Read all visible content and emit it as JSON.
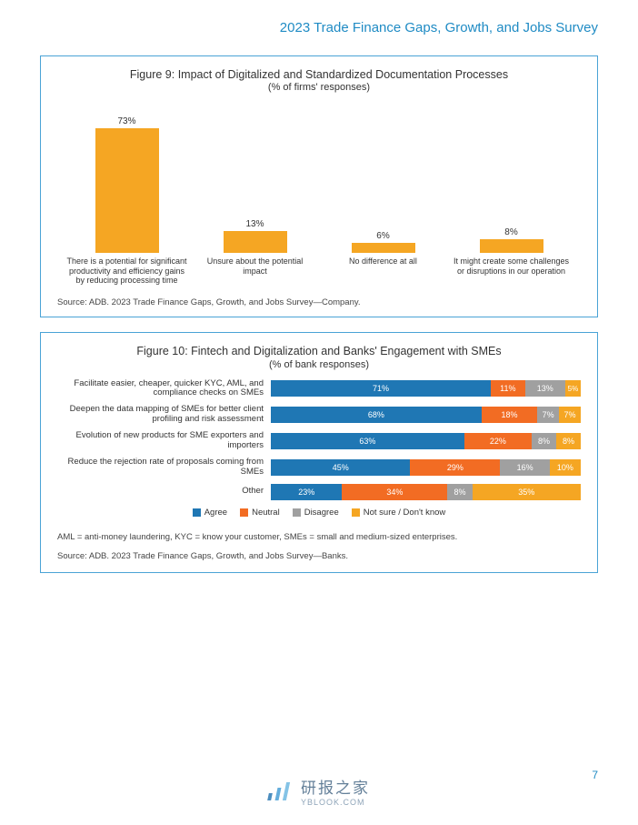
{
  "header": {
    "title": "2023 Trade Finance Gaps, Growth, and Jobs Survey",
    "color": "#1f8bc4"
  },
  "page_number": "7",
  "page_number_color": "#1f8bc4",
  "fig9": {
    "border_color": "#4aa3d6",
    "title": "Figure 9: Impact of Digitalized and Standardized Documentation Processes",
    "subtitle": "(% of firms' responses)",
    "title_color": "#333333",
    "bar_color": "#f5a623",
    "ymax": 80,
    "bars": [
      {
        "value": 73,
        "label_pct": "73%",
        "label": "There is a potential for significant productivity and efficiency gains by reducing processing time"
      },
      {
        "value": 13,
        "label_pct": "13%",
        "label": "Unsure about the potential impact"
      },
      {
        "value": 6,
        "label_pct": "6%",
        "label": "No difference at all"
      },
      {
        "value": 8,
        "label_pct": "8%",
        "label": "It might create some challenges or disruptions in our operation"
      }
    ],
    "source": "Source: ADB. 2023 Trade Finance Gaps, Growth, and Jobs Survey—Company."
  },
  "fig10": {
    "border_color": "#4aa3d6",
    "title": "Figure 10: Fintech and Digitalization and Banks' Engagement with SMEs",
    "subtitle": "(% of bank responses)",
    "colors": {
      "agree": "#1f77b4",
      "neutral": "#f26c23",
      "disagree": "#a0a0a0",
      "notsure": "#f5a623"
    },
    "rows": [
      {
        "label": "Facilitate easier, cheaper, quicker KYC, AML, and compliance checks on SMEs",
        "segs": [
          {
            "k": "agree",
            "v": 71,
            "t": "71%"
          },
          {
            "k": "neutral",
            "v": 11,
            "t": "11%"
          },
          {
            "k": "disagree",
            "v": 13,
            "t": "13%"
          },
          {
            "k": "notsure",
            "v": 5,
            "t": "5%"
          }
        ]
      },
      {
        "label": "Deepen the data mapping of SMEs for better client profiling and risk assessment",
        "segs": [
          {
            "k": "agree",
            "v": 68,
            "t": "68%"
          },
          {
            "k": "neutral",
            "v": 18,
            "t": "18%"
          },
          {
            "k": "disagree",
            "v": 7,
            "t": "7%"
          },
          {
            "k": "notsure",
            "v": 7,
            "t": "7%"
          }
        ]
      },
      {
        "label": "Evolution of new products for SME exporters and importers",
        "segs": [
          {
            "k": "agree",
            "v": 63,
            "t": "63%"
          },
          {
            "k": "neutral",
            "v": 22,
            "t": "22%"
          },
          {
            "k": "disagree",
            "v": 8,
            "t": "8%"
          },
          {
            "k": "notsure",
            "v": 8,
            "t": "8%"
          }
        ]
      },
      {
        "label": "Reduce the rejection rate of proposals coming from SMEs",
        "segs": [
          {
            "k": "agree",
            "v": 45,
            "t": "45%"
          },
          {
            "k": "neutral",
            "v": 29,
            "t": "29%"
          },
          {
            "k": "disagree",
            "v": 16,
            "t": "16%"
          },
          {
            "k": "notsure",
            "v": 10,
            "t": "10%"
          }
        ]
      },
      {
        "label": "Other",
        "segs": [
          {
            "k": "agree",
            "v": 23,
            "t": "23%"
          },
          {
            "k": "neutral",
            "v": 34,
            "t": "34%"
          },
          {
            "k": "disagree",
            "v": 8,
            "t": "8%"
          },
          {
            "k": "notsure",
            "v": 35,
            "t": "35%"
          }
        ]
      }
    ],
    "legend": [
      {
        "k": "agree",
        "label": "Agree"
      },
      {
        "k": "neutral",
        "label": "Neutral"
      },
      {
        "k": "disagree",
        "label": "Disagree"
      },
      {
        "k": "notsure",
        "label": "Not sure / Don't know"
      }
    ],
    "footnote": "AML =  anti-money laundering, KYC = know your customer, SMEs = small and medium-sized enterprises.",
    "source": "Source: ADB. 2023 Trade Finance Gaps, Growth, and Jobs Survey—Banks."
  },
  "watermark": {
    "text": "研报之家",
    "sub": "YBLOOK.COM",
    "bar_colors": [
      "#2e7bb5",
      "#4a9fd6",
      "#6fb9e2"
    ]
  }
}
